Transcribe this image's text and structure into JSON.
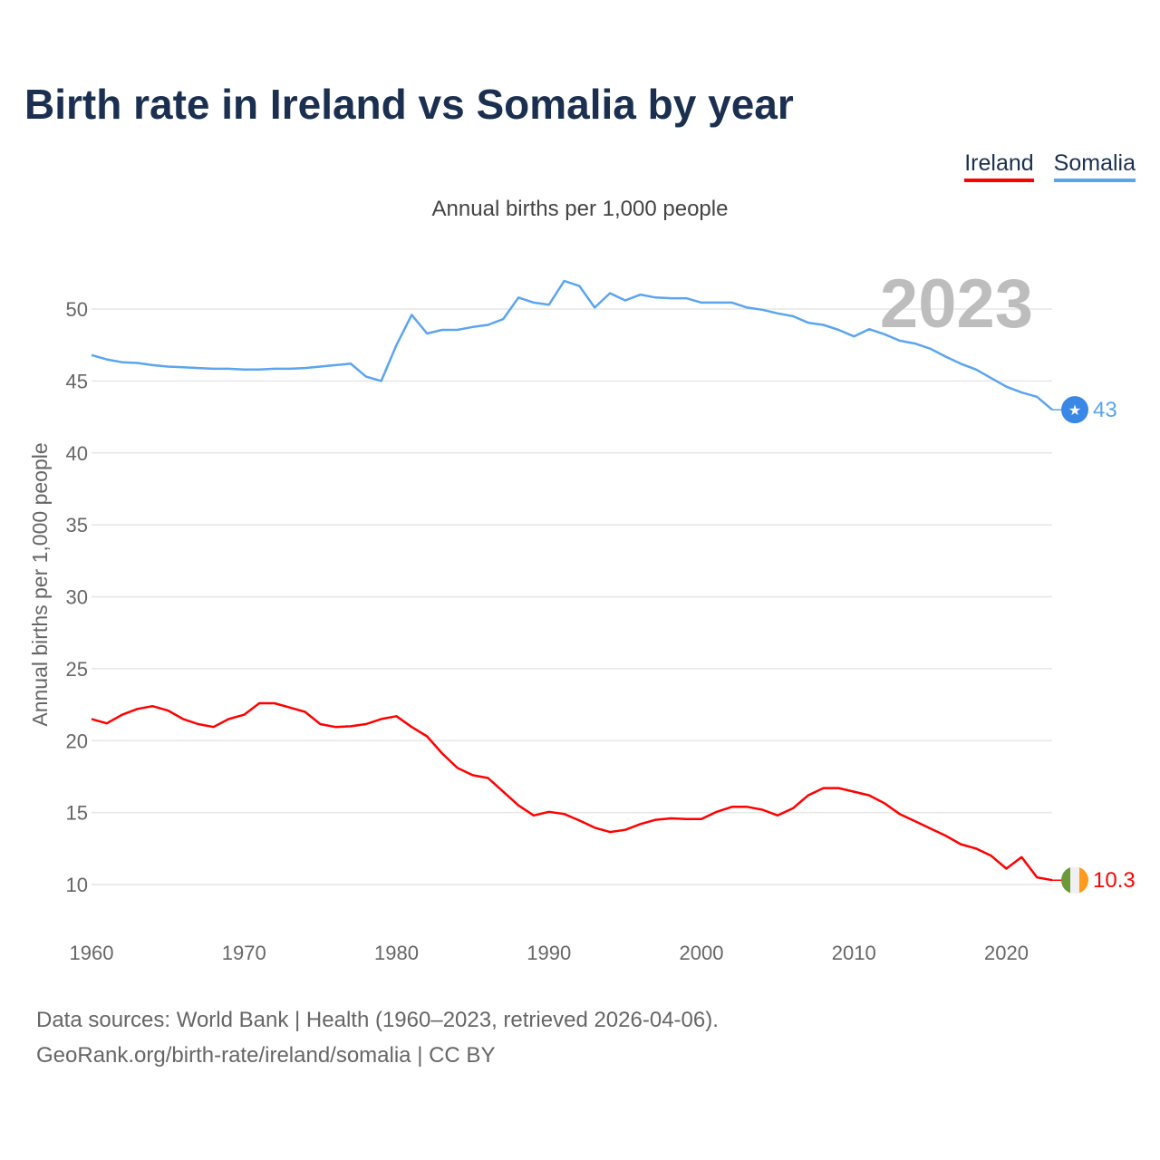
{
  "title": "Birth rate in Ireland vs Somalia by year",
  "legend": {
    "ireland": "Ireland",
    "somalia": "Somalia"
  },
  "subtitle": "Annual births per 1,000 people",
  "year_watermark": "2023",
  "source_line1": "Data sources: World Bank | Health (1960–2023, retrieved 2026-04-06).",
  "source_line2": "GeoRank.org/birth-rate/ireland/somalia | CC BY",
  "chart_data": {
    "type": "line",
    "title": "Birth rate in Ireland vs Somalia by year",
    "ylabel": "Annual births per 1,000 people",
    "xlabel": "",
    "xlim": [
      1960,
      2023
    ],
    "ylim": [
      8,
      53
    ],
    "yticks": [
      10,
      15,
      20,
      25,
      30,
      35,
      40,
      45,
      50
    ],
    "xticks": [
      1960,
      1970,
      1980,
      1990,
      2000,
      2010,
      2020
    ],
    "grid": true,
    "legend_position": "top-right",
    "x_start": 1960,
    "series": [
      {
        "name": "Ireland",
        "color": "#ff0000",
        "end_label": "10.3",
        "end_icon": "ireland-flag",
        "values": [
          21.5,
          21.2,
          21.8,
          22.2,
          22.4,
          22.1,
          21.5,
          21.15,
          20.95,
          21.5,
          21.8,
          22.6,
          22.6,
          22.3,
          22.0,
          21.15,
          20.95,
          21.0,
          21.15,
          21.5,
          21.7,
          20.95,
          20.3,
          19.1,
          18.1,
          17.6,
          17.4,
          16.45,
          15.5,
          14.8,
          15.05,
          14.9,
          14.45,
          13.95,
          13.65,
          13.8,
          14.2,
          14.5,
          14.6,
          14.55,
          14.55,
          15.05,
          15.4,
          15.4,
          15.2,
          14.8,
          15.3,
          16.2,
          16.7,
          16.7,
          16.45,
          16.2,
          15.65,
          14.9,
          14.4,
          13.9,
          13.4,
          12.8,
          12.5,
          12.0,
          11.1,
          11.9,
          10.5,
          10.3
        ]
      },
      {
        "name": "Somalia",
        "color": "#5aa5ee",
        "end_label": "43",
        "end_icon": "somalia-flag",
        "values": [
          46.8,
          46.5,
          46.3,
          46.25,
          46.1,
          46.0,
          45.95,
          45.9,
          45.85,
          45.85,
          45.8,
          45.8,
          45.85,
          45.85,
          45.9,
          46.0,
          46.1,
          46.2,
          45.3,
          45.0,
          47.5,
          49.6,
          48.3,
          48.55,
          48.55,
          48.75,
          48.9,
          49.3,
          50.8,
          50.45,
          50.3,
          51.95,
          51.6,
          50.1,
          51.1,
          50.6,
          51.0,
          50.8,
          50.75,
          50.75,
          50.45,
          50.45,
          50.45,
          50.1,
          49.95,
          49.7,
          49.5,
          49.05,
          48.9,
          48.55,
          48.1,
          48.6,
          48.25,
          47.8,
          47.6,
          47.25,
          46.7,
          46.2,
          45.8,
          45.2,
          44.6,
          44.2,
          43.9,
          43.0
        ]
      }
    ]
  }
}
